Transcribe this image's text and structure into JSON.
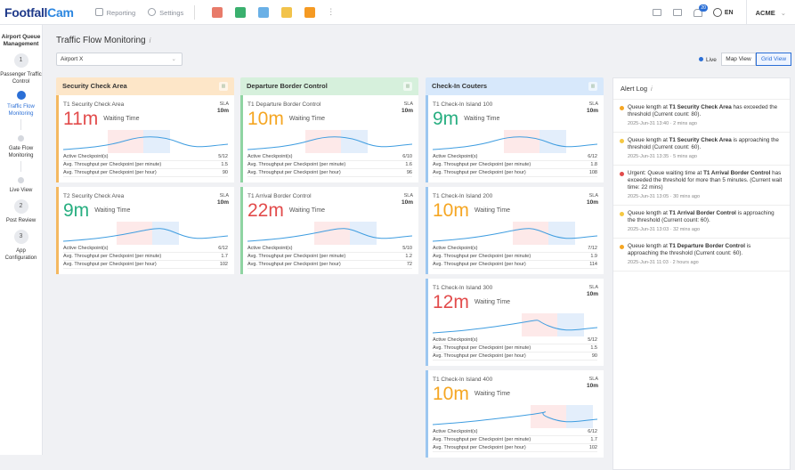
{
  "app": {
    "logo_a": "Footfall",
    "logo_b": "Cam",
    "reporting": "Reporting",
    "settings": "Settings",
    "lang": "EN",
    "notif_count": "20",
    "account": "ACME"
  },
  "sidebar": {
    "title": "Airport Queue Management",
    "steps": [
      {
        "n": "1",
        "label": "Passenger Traffic Control"
      },
      {
        "label": "Traffic Flow Monitoring",
        "active": true
      },
      {
        "label": "Gate Flow Monitoring"
      },
      {
        "label": "Live View"
      },
      {
        "n": "2",
        "label": "Post Review"
      },
      {
        "n": "3",
        "label": "App Configuration"
      }
    ]
  },
  "page": {
    "title": "Traffic Flow Monitoring",
    "airport": "Airport X",
    "live": "Live",
    "map_view": "Map View",
    "grid_view": "Grid View"
  },
  "columns": [
    {
      "title": "Security Check Area",
      "color": "#fde6c8",
      "cards": [
        {
          "name": "T1 Security Check Area",
          "time": "11m",
          "tcolor": "#e24b4b",
          "active": "5/12",
          "pm": "1.5",
          "ph": "90"
        },
        {
          "name": "T2 Security Check Area",
          "time": "9m",
          "tcolor": "#27ae80",
          "active": "6/12",
          "pm": "1.7",
          "ph": "102"
        }
      ]
    },
    {
      "title": "Departure Border Control",
      "color": "#d6f0dc",
      "cards": [
        {
          "name": "T1 Departure Border Control",
          "time": "10m",
          "tcolor": "#f5a623",
          "active": "6/10",
          "pm": "1.6",
          "ph": "96"
        },
        {
          "name": "T1 Arrival Border Control",
          "time": "22m",
          "tcolor": "#e24b4b",
          "active": "5/10",
          "pm": "1.2",
          "ph": "72"
        }
      ]
    },
    {
      "title": "Check-In Couters",
      "color": "#d7e8fb",
      "cards": [
        {
          "name": "T1 Check-In Island 100",
          "time": "9m",
          "tcolor": "#27ae80",
          "active": "6/12",
          "pm": "1.8",
          "ph": "108"
        },
        {
          "name": "T1 Check-In Island 200",
          "time": "10m",
          "tcolor": "#f5a623",
          "active": "7/12",
          "pm": "1.9",
          "ph": "114"
        },
        {
          "name": "T1 Check-In Island 300",
          "time": "12m",
          "tcolor": "#e24b4b",
          "active": "5/12",
          "pm": "1.5",
          "ph": "90"
        },
        {
          "name": "T1 Check-In Island 400",
          "time": "10m",
          "tcolor": "#f5a623",
          "active": "6/12",
          "pm": "1.7",
          "ph": "102"
        }
      ]
    }
  ],
  "labels": {
    "sla": "SLA",
    "sla_val": "10m",
    "waiting": "Waiting Time",
    "active": "Active Checkpoint(s)",
    "per_min": "Avg. Throughput per Checkpoint (per minute)",
    "per_hour": "Avg. Throughput per Checkpoint (per hour)"
  },
  "alerts": {
    "title": "Alert Log",
    "items": [
      {
        "color": "#f5a623",
        "pre": "Queue length at ",
        "bold": "T1 Security Check Area",
        "post": " has exceeded the threshold (Current count: 80).",
        "meta": "2025-Jun-31 13:40 · 2 mins ago"
      },
      {
        "color": "#f5c842",
        "pre": "Queue length at ",
        "bold": "T1 Security Check Area",
        "post": " is approaching the threshold (Current count: 60).",
        "meta": "2025-Jun-31 13:35 · 5 mins ago"
      },
      {
        "color": "#e24b4b",
        "pre": "Urgent: Queue waiting time at ",
        "bold": "T1 Arrival Border Control",
        "post": " has exceeded the threshold for more than 5 minutes. (Current wait time: 22 mins)",
        "meta": "2025-Jun-31 13:05 · 30 mins ago"
      },
      {
        "color": "#f5c842",
        "pre": "Queue length at ",
        "bold": "T1 Arrival Border Control",
        "post": " is approaching the threshold (Current count: 60).",
        "meta": "2025-Jun-31 13:03 · 32 mins ago"
      },
      {
        "color": "#f5a623",
        "pre": "Queue length at ",
        "bold": "T1 Departure Border Control",
        "post": " is approaching the threshold (Current count: 60).",
        "meta": "2025-Jun-31 11:03 · 2 hours ago"
      }
    ]
  }
}
